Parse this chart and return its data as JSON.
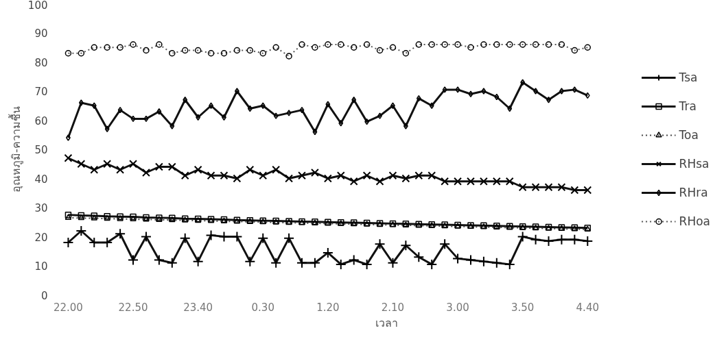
{
  "chart_data": {
    "type": "line",
    "ylabel": "อุณหภูมิ-ความชื้น",
    "xlabel": "เวลา",
    "categories": [
      "22.00",
      null,
      null,
      null,
      null,
      "22.50",
      null,
      null,
      null,
      null,
      "23.40",
      null,
      null,
      null,
      null,
      "0.30",
      null,
      null,
      null,
      null,
      "1.20",
      null,
      null,
      null,
      null,
      "2.10",
      null,
      null,
      null,
      null,
      "3.00",
      null,
      null,
      null,
      null,
      "3.50",
      null,
      null,
      null,
      null,
      "4.40"
    ],
    "ylim": [
      0,
      100
    ],
    "yticks": [
      0,
      10,
      20,
      30,
      40,
      50,
      60,
      70,
      80,
      90,
      100
    ],
    "grid": false,
    "legend": "right",
    "series": [
      {
        "name": "Tsa",
        "color": "#111111",
        "marker": "cross",
        "line_style": "solid",
        "values": [
          18,
          22,
          18,
          18,
          21,
          12,
          20,
          12,
          11,
          19.5,
          11.5,
          20.5,
          20,
          20,
          11.5,
          19.5,
          11,
          19.5,
          11,
          11,
          14.5,
          10.5,
          12,
          10.5,
          17.5,
          11,
          17,
          13,
          10.5,
          17.5,
          12.5,
          12,
          11.5,
          11,
          10.5,
          20,
          19,
          18.5,
          19,
          19,
          18.5
        ]
      },
      {
        "name": "Tra",
        "color": "#111111",
        "marker": "square",
        "line_style": "solid",
        "values": [
          27.5,
          27.3,
          27.2,
          27,
          26.9,
          26.8,
          26.6,
          26.5,
          26.4,
          26.2,
          26.1,
          26,
          25.9,
          25.7,
          25.6,
          25.5,
          25.4,
          25.3,
          25.2,
          25.1,
          25,
          24.9,
          24.8,
          24.7,
          24.6,
          24.5,
          24.4,
          24.3,
          24.2,
          24.1,
          24,
          23.9,
          23.8,
          23.7,
          23.6,
          23.5,
          23.4,
          23.3,
          23.2,
          23.1,
          23
        ]
      },
      {
        "name": "Toa",
        "color": "#444444",
        "marker": "triangle",
        "line_style": "dotted",
        "values": [
          26.5,
          26.4,
          26.3,
          26.2,
          26.1,
          26,
          25.9,
          25.8,
          25.7,
          25.6,
          25.5,
          25.4,
          25.3,
          25.2,
          25.1,
          25,
          24.9,
          24.8,
          24.7,
          24.6,
          24.5,
          24.4,
          24.3,
          24.2,
          24.1,
          24,
          23.9,
          23.8,
          23.7,
          23.6,
          23.5,
          23.4,
          23.3,
          23.2,
          23.1,
          23,
          22.9,
          22.8,
          22.7,
          22.6,
          22.5
        ]
      },
      {
        "name": "RHsa",
        "color": "#111111",
        "marker": "x",
        "line_style": "solid",
        "values": [
          47,
          45,
          43,
          45,
          43,
          45,
          42,
          44,
          44,
          41,
          43,
          41,
          41,
          40,
          43,
          41,
          43,
          40,
          41,
          42,
          40,
          41,
          39,
          41,
          39,
          41,
          40,
          41,
          41,
          39,
          39,
          39,
          39,
          39,
          39,
          37,
          37,
          37,
          37,
          36,
          36
        ]
      },
      {
        "name": "RHra",
        "color": "#111111",
        "marker": "diamond",
        "line_style": "solid",
        "values": [
          54,
          66,
          65,
          57,
          63.5,
          60.5,
          60.5,
          63,
          58,
          67,
          61,
          65,
          61,
          70,
          64,
          65,
          61.5,
          62.5,
          63.5,
          56,
          65.5,
          59,
          67,
          59.5,
          61.5,
          65,
          58,
          67.5,
          65,
          70.5,
          70.5,
          69,
          70,
          68,
          64,
          73,
          70,
          67,
          70,
          70.5,
          68.5
        ]
      },
      {
        "name": "RHoa",
        "color": "#555555",
        "marker": "circle",
        "line_style": "dotted",
        "values": [
          83,
          83,
          85,
          85,
          85,
          86,
          84,
          86,
          83,
          84,
          84,
          83,
          83,
          84,
          84,
          83,
          85,
          82,
          86,
          85,
          86,
          86,
          85,
          86,
          84,
          85,
          83,
          86,
          86,
          86,
          86,
          85,
          86,
          86,
          86,
          86,
          86,
          86,
          86,
          84,
          85
        ]
      }
    ]
  }
}
